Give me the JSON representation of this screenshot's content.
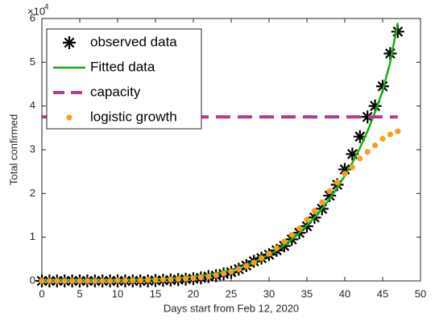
{
  "chart_data": {
    "type": "line",
    "xlabel": "Days start from Feb 12, 2020",
    "ylabel": "Total confirmed",
    "y_scale_label": "×10",
    "y_scale_exponent": "4",
    "xlim": [
      0,
      50
    ],
    "xticks": [
      0,
      5,
      10,
      15,
      20,
      25,
      30,
      35,
      40,
      45,
      50
    ],
    "ylim": [
      0,
      6
    ],
    "yticks": [
      0,
      1,
      2,
      3,
      4,
      5,
      6
    ],
    "grid": false,
    "legend": "upper left",
    "x": [
      0,
      1,
      2,
      3,
      4,
      5,
      6,
      7,
      8,
      9,
      10,
      11,
      12,
      13,
      14,
      15,
      16,
      17,
      18,
      19,
      20,
      21,
      22,
      23,
      24,
      25,
      26,
      27,
      28,
      29,
      30,
      31,
      32,
      33,
      34,
      35,
      36,
      37,
      38,
      39,
      40,
      41,
      42,
      43,
      44,
      45,
      46,
      47
    ],
    "series": [
      {
        "name": "observed data",
        "color": "#000000",
        "style": "asterisk",
        "values": [
          0,
          0,
          0,
          0,
          0,
          0,
          0,
          0,
          0,
          0,
          0,
          0,
          0,
          0,
          0,
          0.01,
          0.015,
          0.02,
          0.03,
          0.04,
          0.05,
          0.07,
          0.1,
          0.12,
          0.16,
          0.2,
          0.27,
          0.35,
          0.45,
          0.52,
          0.6,
          0.7,
          0.8,
          0.95,
          1.1,
          1.25,
          1.45,
          1.65,
          1.95,
          2.2,
          2.55,
          2.9,
          3.3,
          3.75,
          4.0,
          4.45,
          5.2,
          5.7
        ]
      },
      {
        "name": "Fitted data",
        "color": "#1aab1a",
        "style": "solid",
        "values": [
          0.01,
          0.01,
          0.01,
          0.01,
          0.01,
          0.01,
          0.01,
          0.01,
          0.01,
          0.01,
          0.02,
          0.02,
          0.03,
          0.03,
          0.04,
          0.05,
          0.05,
          0.06,
          0.07,
          0.08,
          0.1,
          0.12,
          0.14,
          0.17,
          0.21,
          0.25,
          0.3,
          0.36,
          0.43,
          0.51,
          0.6,
          0.7,
          0.82,
          0.95,
          1.1,
          1.27,
          1.45,
          1.65,
          1.88,
          2.13,
          2.4,
          2.7,
          3.04,
          3.42,
          3.86,
          4.35,
          5.0,
          5.9
        ]
      },
      {
        "name": "capacity",
        "color": "#b23b8c",
        "style": "dashed",
        "x": [
          0,
          47
        ],
        "values": [
          3.75,
          3.75
        ]
      },
      {
        "name": "logistic growth",
        "color": "#f5a01e",
        "style": "dot",
        "values": [
          0,
          0,
          0,
          0,
          0,
          0,
          0,
          0,
          0,
          0,
          0.01,
          0.01,
          0.01,
          0.01,
          0.02,
          0.02,
          0.03,
          0.03,
          0.04,
          0.05,
          0.06,
          0.08,
          0.1,
          0.13,
          0.17,
          0.21,
          0.27,
          0.34,
          0.42,
          0.52,
          0.62,
          0.75,
          0.9,
          1.05,
          1.2,
          1.4,
          1.6,
          1.8,
          2.05,
          2.25,
          2.45,
          2.6,
          2.8,
          2.95,
          3.1,
          3.25,
          3.35,
          3.42
        ]
      }
    ]
  }
}
